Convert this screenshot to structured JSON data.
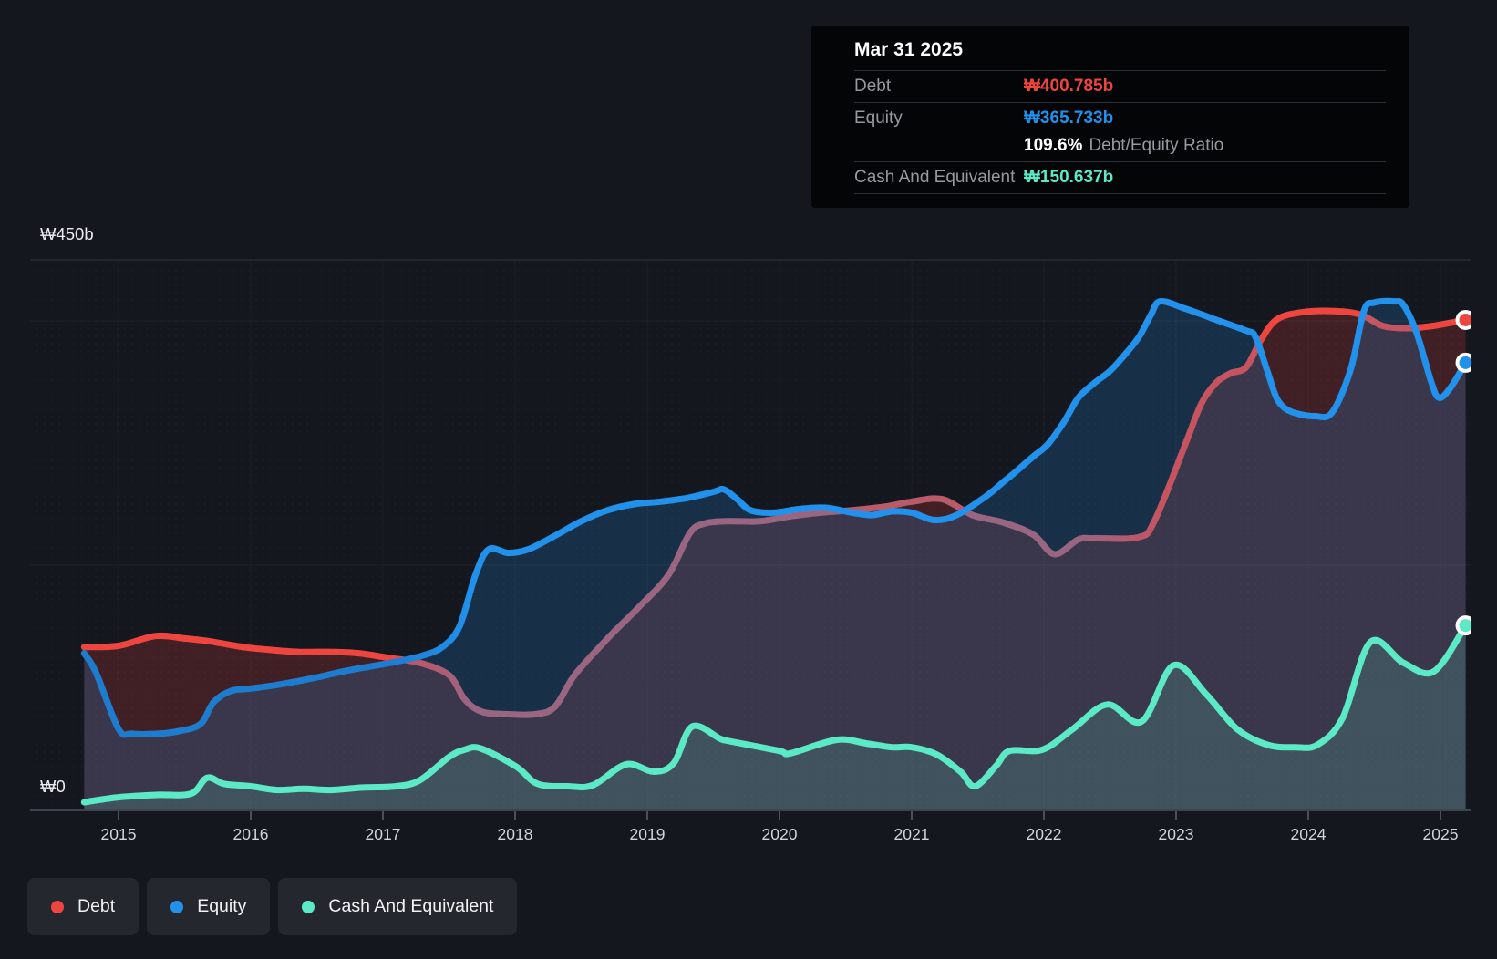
{
  "colors": {
    "debt": "#ee453e",
    "equity": "#2191ec",
    "cash": "#5ce9c6",
    "debt_muted": "#b85a67",
    "equity_muted": "#1e7ccf",
    "background": "#14171e",
    "tooltip_bg": "#040507",
    "legend_pill_bg": "#24282e",
    "gridline_strong": "rgba(255,255,255,0.13)",
    "gridline_faint": "rgba(255,255,255,0.055)",
    "axis_line": "#3e444c"
  },
  "tooltip": {
    "date": "Mar 31 2025",
    "rows": [
      {
        "label": "Debt",
        "value": "₩400.785b",
        "color_key": "debt"
      },
      {
        "label": "Equity",
        "value": "₩365.733b",
        "color_key": "equity"
      },
      {
        "label": "Cash And Equivalent",
        "value": "₩150.637b",
        "color_key": "cash"
      }
    ],
    "ratio": {
      "value": "109.6%",
      "label": "Debt/Equity Ratio"
    }
  },
  "legend": {
    "items": [
      {
        "label": "Debt",
        "color_key": "debt"
      },
      {
        "label": "Equity",
        "color_key": "equity"
      },
      {
        "label": "Cash And Equivalent",
        "color_key": "cash"
      }
    ]
  },
  "axis": {
    "y_top_label": "₩450b",
    "y_zero_label": "₩0"
  },
  "chart_data": {
    "type": "area",
    "unit": "₩ billions (KRW)",
    "ylim": [
      0,
      450
    ],
    "y_gridline_values": [
      450,
      400,
      200
    ],
    "x_tick_labels": [
      "2015",
      "2016",
      "2017",
      "2018",
      "2019",
      "2020",
      "2021",
      "2022",
      "2023",
      "2024",
      "2025"
    ],
    "x_range_years": [
      2014.74,
      2025.27
    ],
    "legend_position": "bottom-left",
    "grid": true,
    "series": [
      {
        "name": "Debt",
        "color_key": "debt",
        "fill_opacity": 0.2,
        "end_value": 400.785,
        "points": [
          [
            2014.74,
            133
          ],
          [
            2015.0,
            134
          ],
          [
            2015.28,
            142
          ],
          [
            2015.5,
            140
          ],
          [
            2015.67,
            138
          ],
          [
            2015.94,
            133
          ],
          [
            2016.12,
            131
          ],
          [
            2016.36,
            129
          ],
          [
            2016.59,
            129
          ],
          [
            2016.81,
            128
          ],
          [
            2017.05,
            124
          ],
          [
            2017.28,
            120
          ],
          [
            2017.5,
            110
          ],
          [
            2017.62,
            90
          ],
          [
            2017.75,
            80
          ],
          [
            2017.95,
            78
          ],
          [
            2018.15,
            78
          ],
          [
            2018.3,
            84
          ],
          [
            2018.45,
            110
          ],
          [
            2018.7,
            140
          ],
          [
            2018.93,
            165
          ],
          [
            2019.16,
            192
          ],
          [
            2019.32,
            226
          ],
          [
            2019.43,
            234
          ],
          [
            2019.6,
            236
          ],
          [
            2019.85,
            236
          ],
          [
            2020.08,
            240
          ],
          [
            2020.31,
            243
          ],
          [
            2020.55,
            245
          ],
          [
            2020.8,
            248
          ],
          [
            2021.0,
            252
          ],
          [
            2021.23,
            254
          ],
          [
            2021.46,
            241
          ],
          [
            2021.69,
            235
          ],
          [
            2021.92,
            225
          ],
          [
            2022.08,
            209
          ],
          [
            2022.26,
            221
          ],
          [
            2022.38,
            222
          ],
          [
            2022.72,
            223
          ],
          [
            2022.84,
            237
          ],
          [
            2023.07,
            299
          ],
          [
            2023.19,
            332
          ],
          [
            2023.3,
            349
          ],
          [
            2023.41,
            357
          ],
          [
            2023.53,
            362
          ],
          [
            2023.64,
            384
          ],
          [
            2023.76,
            401
          ],
          [
            2023.95,
            407
          ],
          [
            2024.2,
            408
          ],
          [
            2024.4,
            405
          ],
          [
            2024.56,
            396
          ],
          [
            2024.74,
            394
          ],
          [
            2024.95,
            396
          ],
          [
            2025.19,
            400.785
          ]
        ]
      },
      {
        "name": "Equity",
        "color_key": "equity",
        "fill_opacity": 0.2,
        "end_value": 365.733,
        "points": [
          [
            2014.74,
            128
          ],
          [
            2014.83,
            112
          ],
          [
            2015.0,
            66
          ],
          [
            2015.1,
            62
          ],
          [
            2015.3,
            62
          ],
          [
            2015.45,
            64
          ],
          [
            2015.62,
            70
          ],
          [
            2015.72,
            88
          ],
          [
            2015.85,
            97
          ],
          [
            2016.0,
            99
          ],
          [
            2016.2,
            102
          ],
          [
            2016.45,
            107
          ],
          [
            2016.7,
            113
          ],
          [
            2016.9,
            117
          ],
          [
            2017.1,
            121
          ],
          [
            2017.3,
            126
          ],
          [
            2017.45,
            133
          ],
          [
            2017.58,
            150
          ],
          [
            2017.7,
            192
          ],
          [
            2017.8,
            213
          ],
          [
            2017.95,
            210
          ],
          [
            2018.1,
            213
          ],
          [
            2018.3,
            224
          ],
          [
            2018.5,
            236
          ],
          [
            2018.7,
            245
          ],
          [
            2018.9,
            250
          ],
          [
            2019.1,
            252
          ],
          [
            2019.3,
            255
          ],
          [
            2019.5,
            260
          ],
          [
            2019.58,
            262
          ],
          [
            2019.68,
            254
          ],
          [
            2019.78,
            245
          ],
          [
            2019.95,
            243
          ],
          [
            2020.15,
            246
          ],
          [
            2020.35,
            247
          ],
          [
            2020.55,
            243
          ],
          [
            2020.7,
            241
          ],
          [
            2020.85,
            244
          ],
          [
            2021.0,
            243
          ],
          [
            2021.17,
            237
          ],
          [
            2021.34,
            241
          ],
          [
            2021.57,
            257
          ],
          [
            2021.69,
            268
          ],
          [
            2021.76,
            274
          ],
          [
            2021.92,
            289
          ],
          [
            2022.03,
            299
          ],
          [
            2022.15,
            317
          ],
          [
            2022.26,
            337
          ],
          [
            2022.38,
            349
          ],
          [
            2022.5,
            359
          ],
          [
            2022.61,
            372
          ],
          [
            2022.72,
            387
          ],
          [
            2022.81,
            405
          ],
          [
            2022.88,
            416
          ],
          [
            2023.07,
            410
          ],
          [
            2023.3,
            401
          ],
          [
            2023.53,
            392
          ],
          [
            2023.6,
            387
          ],
          [
            2023.69,
            359
          ],
          [
            2023.76,
            337
          ],
          [
            2023.83,
            328
          ],
          [
            2023.92,
            324
          ],
          [
            2024.05,
            322
          ],
          [
            2024.18,
            325
          ],
          [
            2024.32,
            360
          ],
          [
            2024.42,
            408
          ],
          [
            2024.5,
            415
          ],
          [
            2024.65,
            416
          ],
          [
            2024.72,
            413
          ],
          [
            2024.82,
            390
          ],
          [
            2024.93,
            350
          ],
          [
            2024.99,
            337
          ],
          [
            2025.08,
            346
          ],
          [
            2025.19,
            365.733
          ]
        ]
      },
      {
        "name": "Cash And Equivalent",
        "color_key": "cash",
        "fill_opacity": 0.16,
        "end_value": 150.637,
        "points": [
          [
            2014.74,
            6
          ],
          [
            2015.0,
            10
          ],
          [
            2015.3,
            12
          ],
          [
            2015.55,
            13
          ],
          [
            2015.67,
            26
          ],
          [
            2015.8,
            21
          ],
          [
            2016.0,
            19
          ],
          [
            2016.2,
            16
          ],
          [
            2016.4,
            17
          ],
          [
            2016.6,
            16
          ],
          [
            2016.85,
            18
          ],
          [
            2017.1,
            19
          ],
          [
            2017.28,
            24
          ],
          [
            2017.5,
            43
          ],
          [
            2017.62,
            49
          ],
          [
            2017.74,
            50
          ],
          [
            2018.01,
            35
          ],
          [
            2018.17,
            21
          ],
          [
            2018.4,
            19
          ],
          [
            2018.59,
            20
          ],
          [
            2018.84,
            37
          ],
          [
            2019.05,
            31
          ],
          [
            2019.2,
            38
          ],
          [
            2019.34,
            68
          ],
          [
            2019.55,
            58
          ],
          [
            2019.62,
            56
          ],
          [
            2020.0,
            48
          ],
          [
            2020.08,
            46
          ],
          [
            2020.43,
            57
          ],
          [
            2020.66,
            54
          ],
          [
            2020.85,
            51
          ],
          [
            2021.0,
            51
          ],
          [
            2021.19,
            45
          ],
          [
            2021.37,
            31
          ],
          [
            2021.48,
            19
          ],
          [
            2021.64,
            36
          ],
          [
            2021.74,
            48
          ],
          [
            2021.99,
            49
          ],
          [
            2022.22,
            66
          ],
          [
            2022.48,
            86
          ],
          [
            2022.74,
            72
          ],
          [
            2022.98,
            118
          ],
          [
            2023.23,
            94
          ],
          [
            2023.46,
            66
          ],
          [
            2023.69,
            53
          ],
          [
            2023.9,
            51
          ],
          [
            2024.07,
            53
          ],
          [
            2024.26,
            75
          ],
          [
            2024.47,
            137
          ],
          [
            2024.72,
            120
          ],
          [
            2024.95,
            113
          ],
          [
            2025.19,
            150.637
          ]
        ]
      }
    ]
  }
}
